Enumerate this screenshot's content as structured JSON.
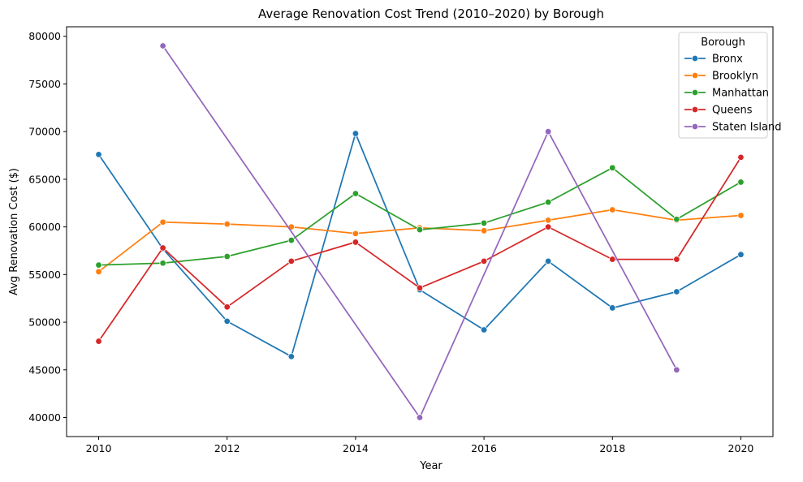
{
  "chart_data": {
    "type": "line",
    "title": "Average Renovation Cost Trend (2010–2020) by Borough",
    "xlabel": "Year",
    "ylabel": "Avg Renovation Cost ($)",
    "xlim": [
      2009.5,
      2020.5
    ],
    "ylim": [
      38000,
      81000
    ],
    "xticks": [
      2010,
      2012,
      2014,
      2016,
      2018,
      2020
    ],
    "yticks": [
      40000,
      45000,
      50000,
      55000,
      60000,
      65000,
      70000,
      75000,
      80000
    ],
    "grid": false,
    "legend": {
      "title": "Borough",
      "position": "top-right"
    },
    "series": [
      {
        "name": "Bronx",
        "color": "#1f77b4",
        "points": [
          [
            2010,
            67600
          ],
          [
            2011,
            57700
          ],
          [
            2012,
            50100
          ],
          [
            2013,
            46400
          ],
          [
            2014,
            69800
          ],
          [
            2015,
            53400
          ],
          [
            2016,
            49200
          ],
          [
            2017,
            56400
          ],
          [
            2018,
            51500
          ],
          [
            2019,
            53200
          ],
          [
            2020,
            57100
          ]
        ]
      },
      {
        "name": "Brooklyn",
        "color": "#ff7f0e",
        "points": [
          [
            2010,
            55300
          ],
          [
            2011,
            60500
          ],
          [
            2012,
            60300
          ],
          [
            2013,
            60000
          ],
          [
            2014,
            59300
          ],
          [
            2015,
            59900
          ],
          [
            2016,
            59600
          ],
          [
            2017,
            60700
          ],
          [
            2018,
            61800
          ],
          [
            2019,
            60700
          ],
          [
            2020,
            61200
          ]
        ]
      },
      {
        "name": "Manhattan",
        "color": "#2ca02c",
        "points": [
          [
            2010,
            56000
          ],
          [
            2011,
            56200
          ],
          [
            2012,
            56900
          ],
          [
            2013,
            58600
          ],
          [
            2014,
            63500
          ],
          [
            2015,
            59700
          ],
          [
            2016,
            60400
          ],
          [
            2017,
            62600
          ],
          [
            2018,
            66200
          ],
          [
            2019,
            60800
          ],
          [
            2020,
            64700
          ]
        ]
      },
      {
        "name": "Queens",
        "color": "#d62728",
        "points": [
          [
            2010,
            48000
          ],
          [
            2011,
            57800
          ],
          [
            2012,
            51600
          ],
          [
            2013,
            56400
          ],
          [
            2014,
            58400
          ],
          [
            2015,
            53600
          ],
          [
            2016,
            56400
          ],
          [
            2017,
            60000
          ],
          [
            2018,
            56600
          ],
          [
            2019,
            56600
          ],
          [
            2020,
            67300
          ]
        ]
      },
      {
        "name": "Staten Island",
        "color": "#9467bd",
        "points": [
          [
            2011,
            79000
          ],
          [
            2015,
            40000
          ],
          [
            2017,
            70000
          ],
          [
            2019,
            45000
          ]
        ]
      }
    ]
  }
}
